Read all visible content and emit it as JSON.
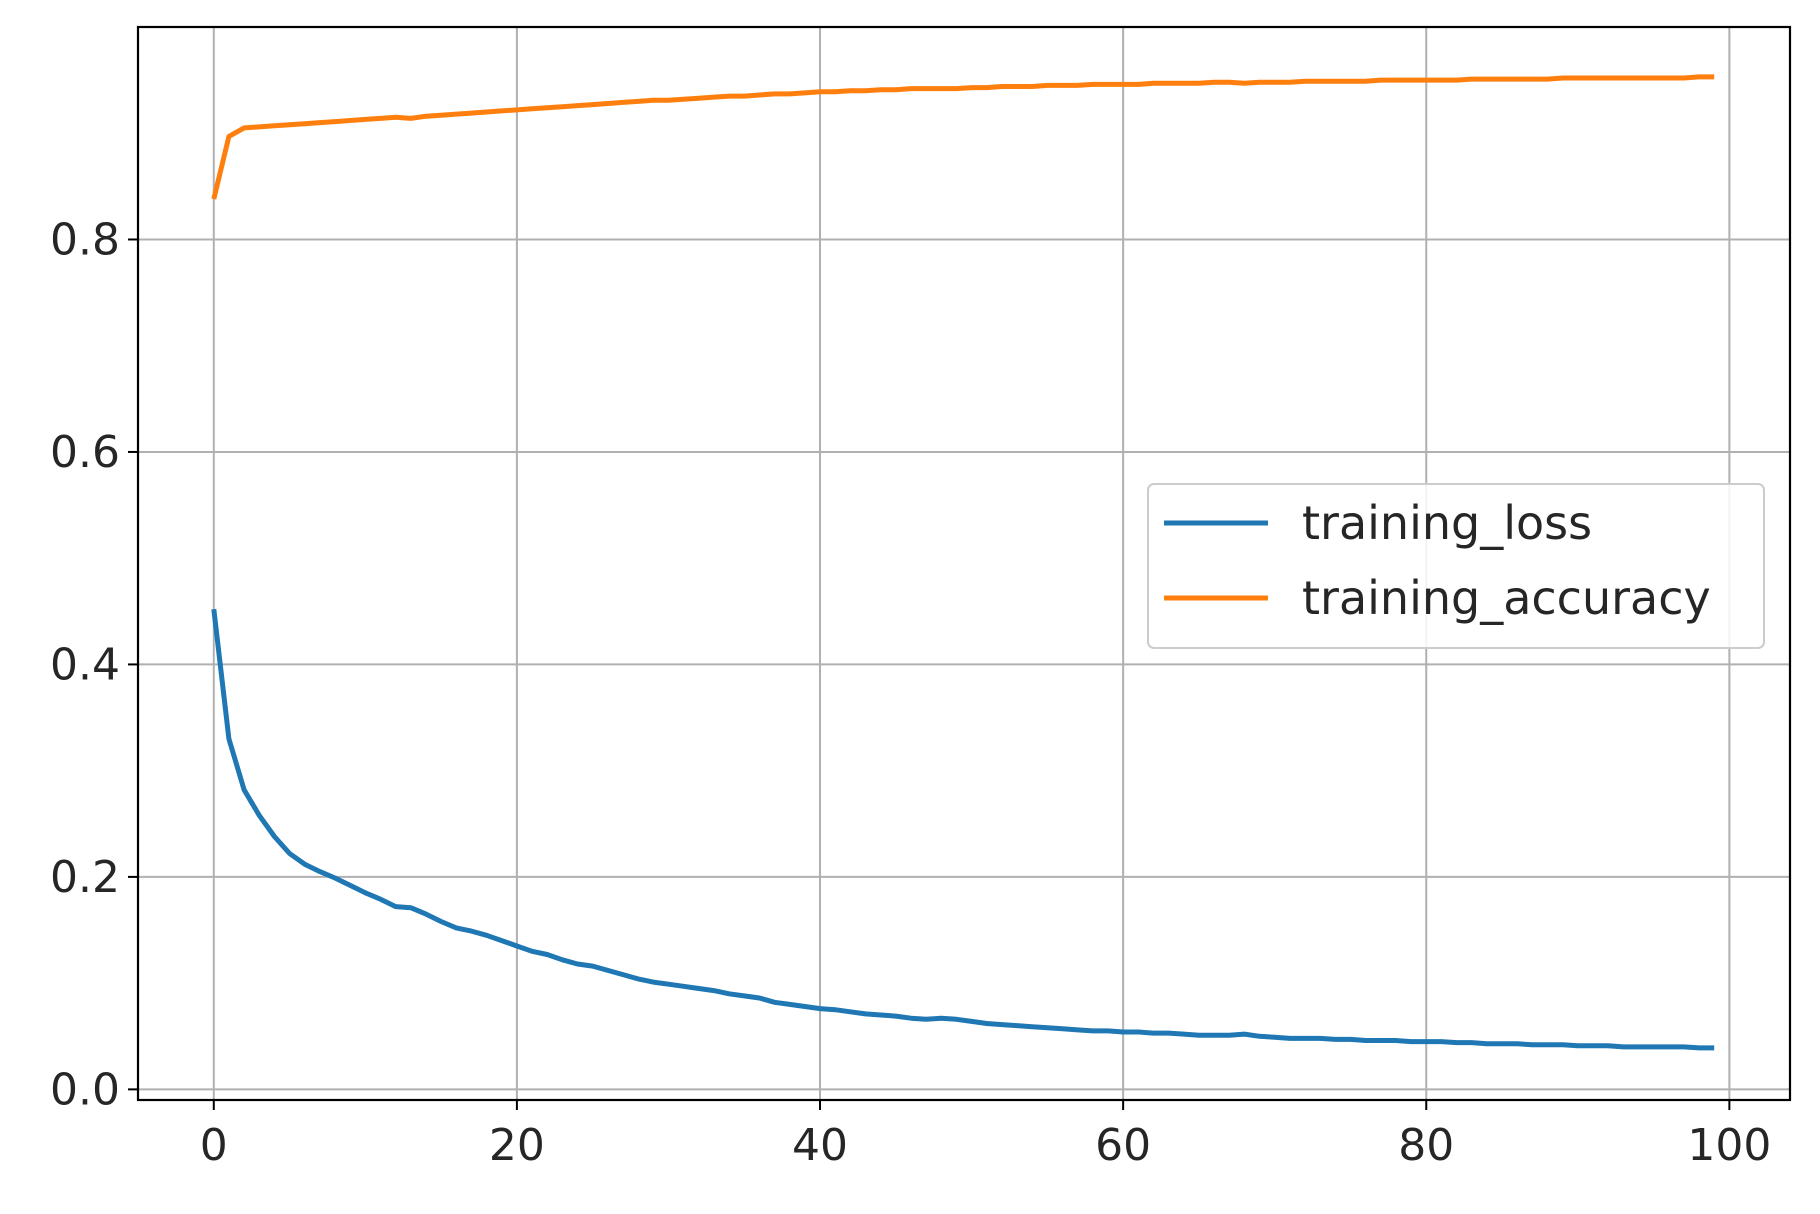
{
  "chart_data": {
    "type": "line",
    "title": "",
    "xlabel": "",
    "ylabel": "",
    "xlim": [
      -5,
      104
    ],
    "ylim": [
      -0.01,
      1.0
    ],
    "x_ticks": [
      0,
      20,
      40,
      60,
      80,
      100
    ],
    "x_tick_labels": [
      "0",
      "20",
      "40",
      "60",
      "80",
      "100"
    ],
    "y_ticks": [
      0.0,
      0.2,
      0.4,
      0.6,
      0.8
    ],
    "y_tick_labels": [
      "0.0",
      "0.2",
      "0.4",
      "0.6",
      "0.8"
    ],
    "grid": true,
    "legend_position": "center-right",
    "x": [
      0,
      1,
      2,
      3,
      4,
      5,
      6,
      7,
      8,
      9,
      10,
      11,
      12,
      13,
      14,
      15,
      16,
      17,
      18,
      19,
      20,
      21,
      22,
      23,
      24,
      25,
      26,
      27,
      28,
      29,
      30,
      31,
      32,
      33,
      34,
      35,
      36,
      37,
      38,
      39,
      40,
      41,
      42,
      43,
      44,
      45,
      46,
      47,
      48,
      49,
      50,
      51,
      52,
      53,
      54,
      55,
      56,
      57,
      58,
      59,
      60,
      61,
      62,
      63,
      64,
      65,
      66,
      67,
      68,
      69,
      70,
      71,
      72,
      73,
      74,
      75,
      76,
      77,
      78,
      79,
      80,
      81,
      82,
      83,
      84,
      85,
      86,
      87,
      88,
      89,
      90,
      91,
      92,
      93,
      94,
      95,
      96,
      97,
      98,
      99
    ],
    "series": [
      {
        "name": "training_loss",
        "color": "#1f77b4",
        "values": [
          0.452,
          0.33,
          0.282,
          0.258,
          0.238,
          0.222,
          0.212,
          0.205,
          0.199,
          0.192,
          0.185,
          0.179,
          0.172,
          0.171,
          0.165,
          0.158,
          0.152,
          0.149,
          0.145,
          0.14,
          0.135,
          0.13,
          0.127,
          0.122,
          0.118,
          0.116,
          0.112,
          0.108,
          0.104,
          0.101,
          0.099,
          0.097,
          0.095,
          0.093,
          0.09,
          0.088,
          0.086,
          0.082,
          0.08,
          0.078,
          0.076,
          0.075,
          0.073,
          0.071,
          0.07,
          0.069,
          0.067,
          0.066,
          0.067,
          0.066,
          0.064,
          0.062,
          0.061,
          0.06,
          0.059,
          0.058,
          0.057,
          0.056,
          0.055,
          0.055,
          0.054,
          0.054,
          0.053,
          0.053,
          0.052,
          0.051,
          0.051,
          0.051,
          0.052,
          0.05,
          0.049,
          0.048,
          0.048,
          0.048,
          0.047,
          0.047,
          0.046,
          0.046,
          0.046,
          0.045,
          0.045,
          0.045,
          0.044,
          0.044,
          0.043,
          0.043,
          0.043,
          0.042,
          0.042,
          0.042,
          0.041,
          0.041,
          0.041,
          0.04,
          0.04,
          0.04,
          0.04,
          0.04,
          0.039,
          0.039
        ]
      },
      {
        "name": "training_accuracy",
        "color": "#ff7f0e",
        "values": [
          0.838,
          0.897,
          0.905,
          0.906,
          0.907,
          0.908,
          0.909,
          0.91,
          0.911,
          0.912,
          0.913,
          0.914,
          0.915,
          0.914,
          0.916,
          0.917,
          0.918,
          0.919,
          0.92,
          0.921,
          0.922,
          0.923,
          0.924,
          0.925,
          0.926,
          0.927,
          0.928,
          0.929,
          0.93,
          0.931,
          0.931,
          0.932,
          0.933,
          0.934,
          0.935,
          0.935,
          0.936,
          0.937,
          0.937,
          0.938,
          0.939,
          0.939,
          0.94,
          0.94,
          0.941,
          0.941,
          0.942,
          0.942,
          0.942,
          0.942,
          0.943,
          0.943,
          0.944,
          0.944,
          0.944,
          0.945,
          0.945,
          0.945,
          0.946,
          0.946,
          0.946,
          0.946,
          0.947,
          0.947,
          0.947,
          0.947,
          0.948,
          0.948,
          0.947,
          0.948,
          0.948,
          0.948,
          0.949,
          0.949,
          0.949,
          0.949,
          0.949,
          0.95,
          0.95,
          0.95,
          0.95,
          0.95,
          0.95,
          0.951,
          0.951,
          0.951,
          0.951,
          0.951,
          0.951,
          0.952,
          0.952,
          0.952,
          0.952,
          0.952,
          0.952,
          0.952,
          0.952,
          0.952,
          0.953,
          0.953
        ]
      }
    ]
  }
}
